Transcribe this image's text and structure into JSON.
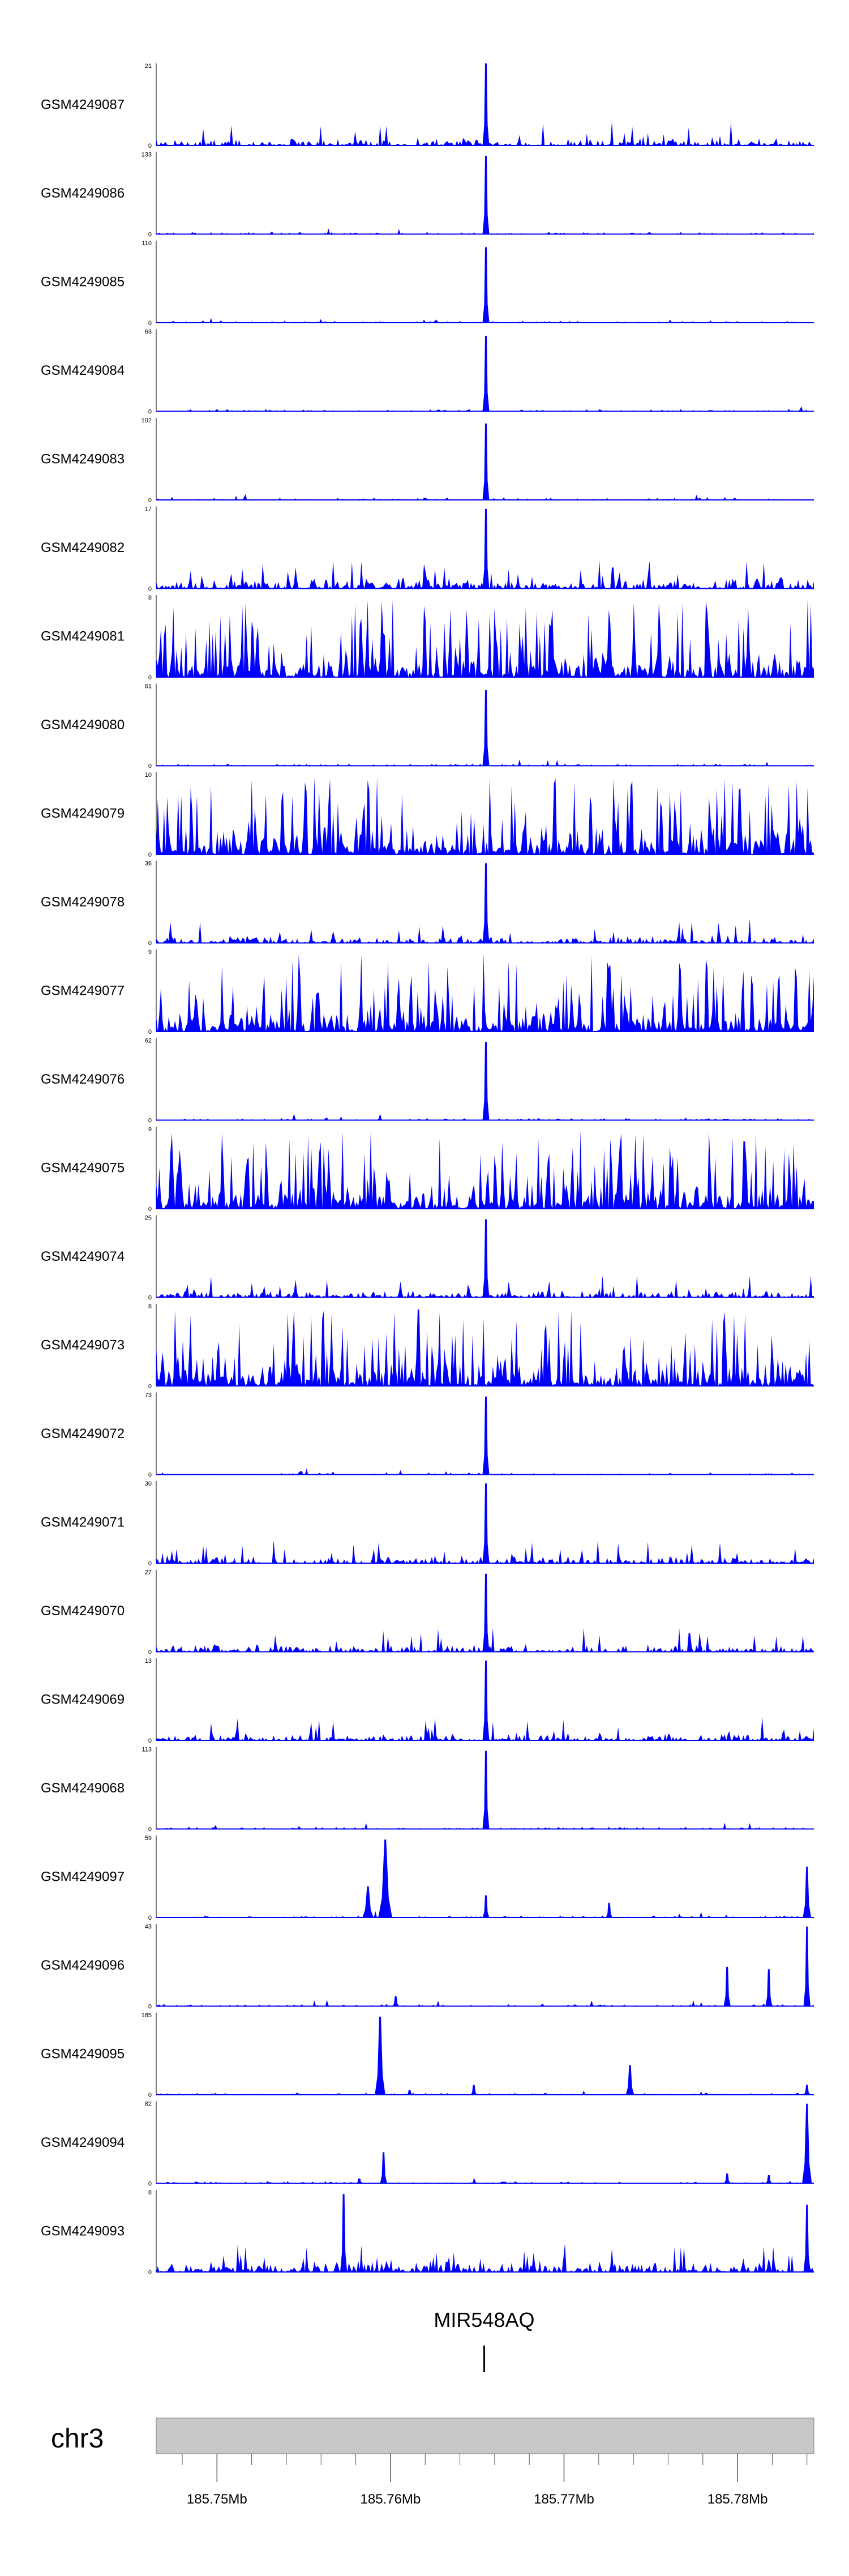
{
  "colors": {
    "signal": "#0000ff",
    "axis": "#000000",
    "ideogram": "#c8c8c8",
    "ideogram_border": "#7f7f7f",
    "text": "#000000"
  },
  "chart_data": {
    "type": "area",
    "x_units": "Mb",
    "xlim": [
      185.7465,
      185.7844
    ],
    "tracks": [
      {
        "name": "GSM4249087",
        "ymax": 21,
        "ymax_label": "21",
        "style": "noisy",
        "peaks": [
          {
            "x": 185.7655,
            "h": 1.0,
            "w": 8e-05
          }
        ]
      },
      {
        "name": "GSM4249086",
        "ymax": 133,
        "ymax_label": "133",
        "style": "quiet",
        "peaks": [
          {
            "x": 185.7655,
            "h": 0.95,
            "w": 8e-05
          }
        ]
      },
      {
        "name": "GSM4249085",
        "ymax": 110,
        "ymax_label": "110",
        "style": "quiet",
        "peaks": [
          {
            "x": 185.7655,
            "h": 0.92,
            "w": 8e-05
          }
        ]
      },
      {
        "name": "GSM4249084",
        "ymax": 63,
        "ymax_label": "63",
        "style": "quiet",
        "peaks": [
          {
            "x": 185.7655,
            "h": 0.92,
            "w": 8e-05
          }
        ]
      },
      {
        "name": "GSM4249083",
        "ymax": 102,
        "ymax_label": "102",
        "style": "quiet",
        "peaks": [
          {
            "x": 185.7655,
            "h": 0.93,
            "w": 8e-05
          }
        ]
      },
      {
        "name": "GSM4249082",
        "ymax": 17,
        "ymax_label": "17",
        "style": "sparse",
        "peaks": [
          {
            "x": 185.7655,
            "h": 0.97,
            "w": 8e-05
          }
        ]
      },
      {
        "name": "GSM4249081",
        "ymax": 8,
        "ymax_label": "8",
        "style": "dense",
        "peaks": []
      },
      {
        "name": "GSM4249080",
        "ymax": 61,
        "ymax_label": "61",
        "style": "quiet",
        "peaks": [
          {
            "x": 185.7655,
            "h": 0.92,
            "w": 8e-05
          }
        ]
      },
      {
        "name": "GSM4249079",
        "ymax": 10,
        "ymax_label": "10",
        "style": "dense",
        "peaks": []
      },
      {
        "name": "GSM4249078",
        "ymax": 36,
        "ymax_label": "36",
        "style": "noisy",
        "peaks": [
          {
            "x": 185.7655,
            "h": 0.97,
            "w": 8e-05
          }
        ]
      },
      {
        "name": "GSM4249077",
        "ymax": 9,
        "ymax_label": "9",
        "style": "dense",
        "peaks": []
      },
      {
        "name": "GSM4249076",
        "ymax": 62,
        "ymax_label": "62",
        "style": "quiet",
        "peaks": [
          {
            "x": 185.7655,
            "h": 0.95,
            "w": 8e-05
          }
        ]
      },
      {
        "name": "GSM4249075",
        "ymax": 9,
        "ymax_label": "9",
        "style": "dense",
        "peaks": []
      },
      {
        "name": "GSM4249074",
        "ymax": 25,
        "ymax_label": "25",
        "style": "noisy",
        "peaks": [
          {
            "x": 185.7655,
            "h": 0.95,
            "w": 8e-05
          }
        ]
      },
      {
        "name": "GSM4249073",
        "ymax": 8,
        "ymax_label": "8",
        "style": "dense",
        "peaks": []
      },
      {
        "name": "GSM4249072",
        "ymax": 73,
        "ymax_label": "73",
        "style": "quiet",
        "peaks": [
          {
            "x": 185.7655,
            "h": 0.95,
            "w": 8e-05
          }
        ]
      },
      {
        "name": "GSM4249071",
        "ymax": 30,
        "ymax_label": "30",
        "style": "noisy",
        "peaks": [
          {
            "x": 185.7655,
            "h": 0.97,
            "w": 8e-05
          }
        ]
      },
      {
        "name": "GSM4249070",
        "ymax": 27,
        "ymax_label": "27",
        "style": "noisy",
        "peaks": [
          {
            "x": 185.7655,
            "h": 0.95,
            "w": 8e-05
          }
        ]
      },
      {
        "name": "GSM4249069",
        "ymax": 13,
        "ymax_label": "13",
        "style": "noisy",
        "peaks": [
          {
            "x": 185.7655,
            "h": 0.97,
            "w": 8e-05
          }
        ]
      },
      {
        "name": "GSM4249068",
        "ymax": 113,
        "ymax_label": "113",
        "style": "quiet",
        "peaks": [
          {
            "x": 185.7655,
            "h": 0.95,
            "w": 8e-05
          }
        ]
      },
      {
        "name": "GSM4249097",
        "ymax": 59,
        "ymax_label": "59",
        "style": "quiet",
        "peaks": [
          {
            "x": 185.7587,
            "h": 0.38,
            "w": 0.00016
          },
          {
            "x": 185.7597,
            "h": 0.95,
            "w": 0.0002
          },
          {
            "x": 185.7655,
            "h": 0.27,
            "w": 8e-05
          },
          {
            "x": 185.7726,
            "h": 0.18,
            "w": 6e-05
          },
          {
            "x": 185.784,
            "h": 0.62,
            "w": 0.00012
          }
        ]
      },
      {
        "name": "GSM4249096",
        "ymax": 43,
        "ymax_label": "43",
        "style": "quiet",
        "peaks": [
          {
            "x": 185.7603,
            "h": 0.12,
            "w": 0.0001
          },
          {
            "x": 185.7794,
            "h": 0.48,
            "w": 0.0001
          },
          {
            "x": 185.7818,
            "h": 0.45,
            "w": 0.0001
          },
          {
            "x": 185.784,
            "h": 0.97,
            "w": 0.0001
          }
        ]
      },
      {
        "name": "GSM4249095",
        "ymax": 185,
        "ymax_label": "185",
        "style": "quiet",
        "peaks": [
          {
            "x": 185.7594,
            "h": 0.95,
            "w": 0.00015
          },
          {
            "x": 185.7611,
            "h": 0.06,
            "w": 6e-05
          },
          {
            "x": 185.7648,
            "h": 0.12,
            "w": 6e-05
          },
          {
            "x": 185.7738,
            "h": 0.36,
            "w": 0.00012
          },
          {
            "x": 185.784,
            "h": 0.12,
            "w": 8e-05
          }
        ]
      },
      {
        "name": "GSM4249094",
        "ymax": 82,
        "ymax_label": "82",
        "style": "quiet",
        "peaks": [
          {
            "x": 185.7582,
            "h": 0.06,
            "w": 0.0001
          },
          {
            "x": 185.7596,
            "h": 0.38,
            "w": 0.0001
          },
          {
            "x": 185.7794,
            "h": 0.12,
            "w": 6e-05
          },
          {
            "x": 185.7818,
            "h": 0.1,
            "w": 6e-05
          },
          {
            "x": 185.784,
            "h": 0.97,
            "w": 0.00014
          }
        ]
      },
      {
        "name": "GSM4249093",
        "ymax": 8,
        "ymax_label": "8",
        "style": "sparse",
        "peaks": [
          {
            "x": 185.7573,
            "h": 0.95,
            "w": 0.0001
          },
          {
            "x": 185.784,
            "h": 0.82,
            "w": 0.0001
          }
        ]
      }
    ],
    "gene": {
      "name": "MIR548AQ",
      "x": 185.7654
    },
    "chromosome": "chr3",
    "axis_ticks": [
      {
        "x": 185.75,
        "label": "185.75Mb"
      },
      {
        "x": 185.76,
        "label": "185.76Mb"
      },
      {
        "x": 185.77,
        "label": "185.77Mb"
      },
      {
        "x": 185.78,
        "label": "185.78Mb"
      }
    ]
  }
}
